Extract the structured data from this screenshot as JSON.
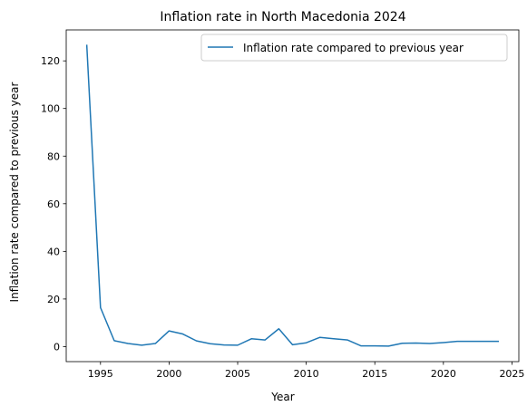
{
  "chart_data": {
    "type": "line",
    "title": "Inflation rate in North Macedonia 2024",
    "xlabel": "Year",
    "ylabel": "Inflation rate compared to previous year",
    "xlim": [
      1992.5,
      2025.5
    ],
    "ylim": [
      -6.3,
      133
    ],
    "x_ticks": [
      1995,
      2000,
      2005,
      2010,
      2015,
      2020,
      2025
    ],
    "y_ticks": [
      0,
      20,
      40,
      60,
      80,
      100,
      120
    ],
    "grid": false,
    "legend_position": "top-right",
    "series": [
      {
        "name": "Inflation rate compared to previous year",
        "color": "#1f77b4",
        "x": [
          1994,
          1995,
          1996,
          1997,
          1998,
          1999,
          2000,
          2001,
          2002,
          2003,
          2004,
          2005,
          2006,
          2007,
          2008,
          2009,
          2010,
          2011,
          2012,
          2013,
          2014,
          2015,
          2016,
          2017,
          2018,
          2019,
          2020,
          2021,
          2022,
          2023,
          2024
        ],
        "y": [
          126.5,
          16.4,
          2.5,
          1.3,
          0.6,
          1.3,
          6.6,
          5.3,
          2.4,
          1.2,
          0.7,
          0.6,
          3.3,
          2.8,
          7.5,
          0.8,
          1.6,
          3.9,
          3.3,
          2.8,
          0.3,
          0.3,
          0.2,
          1.4,
          1.5,
          1.3,
          1.7,
          2.2,
          2.2,
          2.2,
          2.2
        ]
      }
    ]
  }
}
